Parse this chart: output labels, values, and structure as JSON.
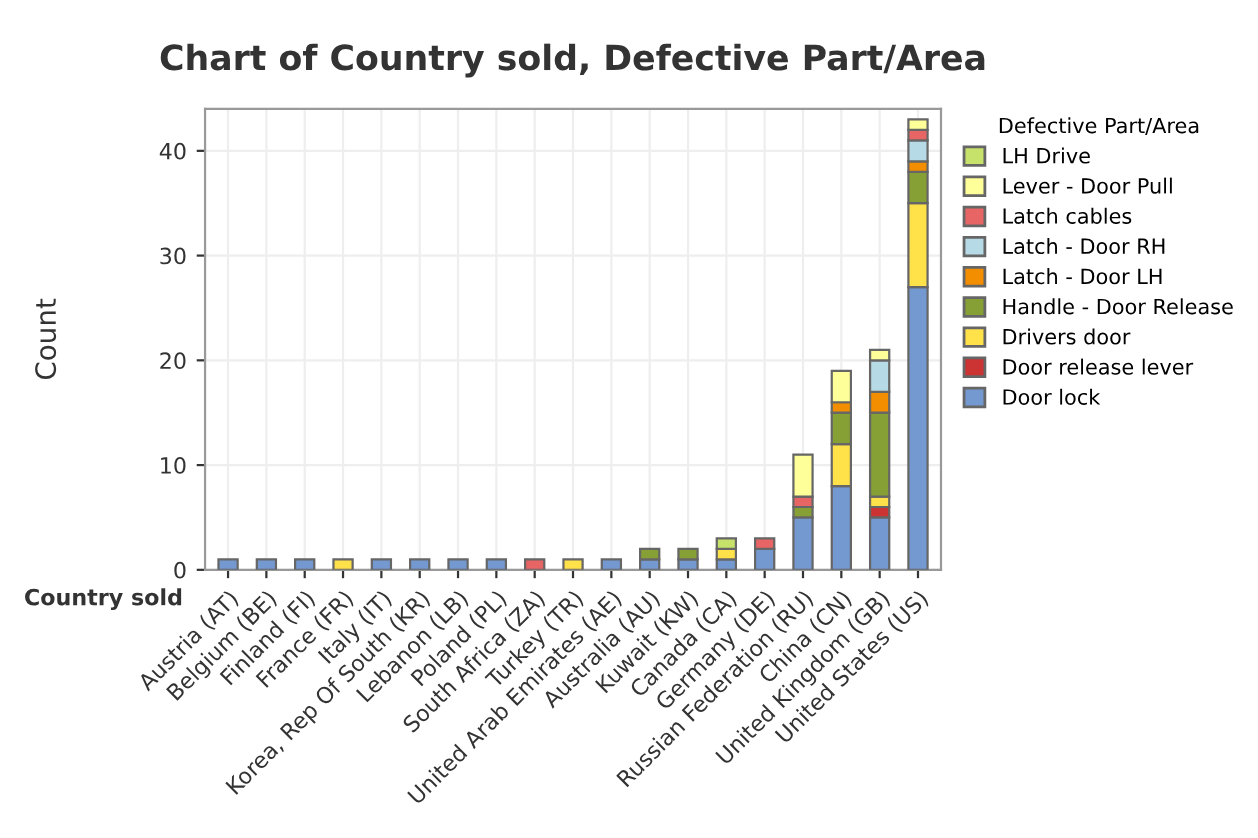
{
  "chart_data": {
    "type": "bar",
    "stacked": true,
    "title": "Chart of Country sold, Defective Part/Area",
    "xlabel": "Country sold",
    "ylabel": "Count",
    "legend_title": "Defective Part/Area",
    "categories": [
      "Austria (AT)",
      "Belgium (BE)",
      "Finland (FI)",
      "France (FR)",
      "Italy (IT)",
      "Korea, Rep Of South (KR)",
      "Lebanon (LB)",
      "Poland (PL)",
      "South Africa (ZA)",
      "Turkey (TR)",
      "United Arab Emirates (AE)",
      "Australia (AU)",
      "Kuwait (KW)",
      "Canada (CA)",
      "Germany (DE)",
      "Russian Federation (RU)",
      "China (CN)",
      "United Kingdom (GB)",
      "United States (US)"
    ],
    "series": [
      {
        "name": "Door lock",
        "color": "#7499d1",
        "values": [
          1,
          1,
          1,
          null,
          1,
          1,
          1,
          1,
          null,
          null,
          1,
          1,
          1,
          1,
          2,
          5,
          8,
          5,
          27
        ]
      },
      {
        "name": "Door release lever",
        "color": "#cc3333",
        "values": [
          null,
          null,
          null,
          null,
          null,
          null,
          null,
          null,
          null,
          null,
          null,
          null,
          null,
          null,
          null,
          null,
          null,
          1,
          null
        ]
      },
      {
        "name": "Drivers door",
        "color": "#ffe14a",
        "values": [
          null,
          null,
          null,
          1,
          null,
          null,
          null,
          null,
          null,
          1,
          null,
          null,
          null,
          1,
          null,
          null,
          4,
          1,
          8
        ]
      },
      {
        "name": "Handle - Door Release",
        "color": "#86a035",
        "values": [
          null,
          null,
          null,
          null,
          null,
          null,
          null,
          null,
          null,
          null,
          null,
          1,
          1,
          null,
          null,
          1,
          3,
          8,
          3
        ]
      },
      {
        "name": "Latch - Door LH",
        "color": "#f28e00",
        "values": [
          null,
          null,
          null,
          null,
          null,
          null,
          null,
          null,
          null,
          null,
          null,
          null,
          null,
          null,
          null,
          null,
          1,
          2,
          1
        ]
      },
      {
        "name": "Latch - Door RH",
        "color": "#b7dbe6",
        "values": [
          null,
          null,
          null,
          null,
          null,
          null,
          null,
          null,
          null,
          null,
          null,
          null,
          null,
          null,
          null,
          null,
          null,
          3,
          2
        ]
      },
      {
        "name": "Latch cables",
        "color": "#e86565",
        "values": [
          null,
          null,
          null,
          null,
          null,
          null,
          null,
          null,
          1,
          null,
          null,
          null,
          null,
          null,
          1,
          1,
          null,
          null,
          1
        ]
      },
      {
        "name": "Lever - Door Pull",
        "color": "#ffff99",
        "values": [
          null,
          null,
          null,
          null,
          null,
          null,
          null,
          null,
          null,
          null,
          null,
          null,
          null,
          null,
          null,
          4,
          3,
          1,
          1
        ]
      },
      {
        "name": "LH Drive",
        "color": "#c6e26b",
        "values": [
          null,
          null,
          null,
          null,
          null,
          null,
          null,
          null,
          null,
          null,
          null,
          null,
          null,
          1,
          null,
          null,
          null,
          null,
          null
        ]
      }
    ],
    "ylim": [
      0,
      44
    ],
    "yticks": [
      0,
      10,
      20,
      30,
      40
    ],
    "grid": true,
    "legend": "right"
  }
}
